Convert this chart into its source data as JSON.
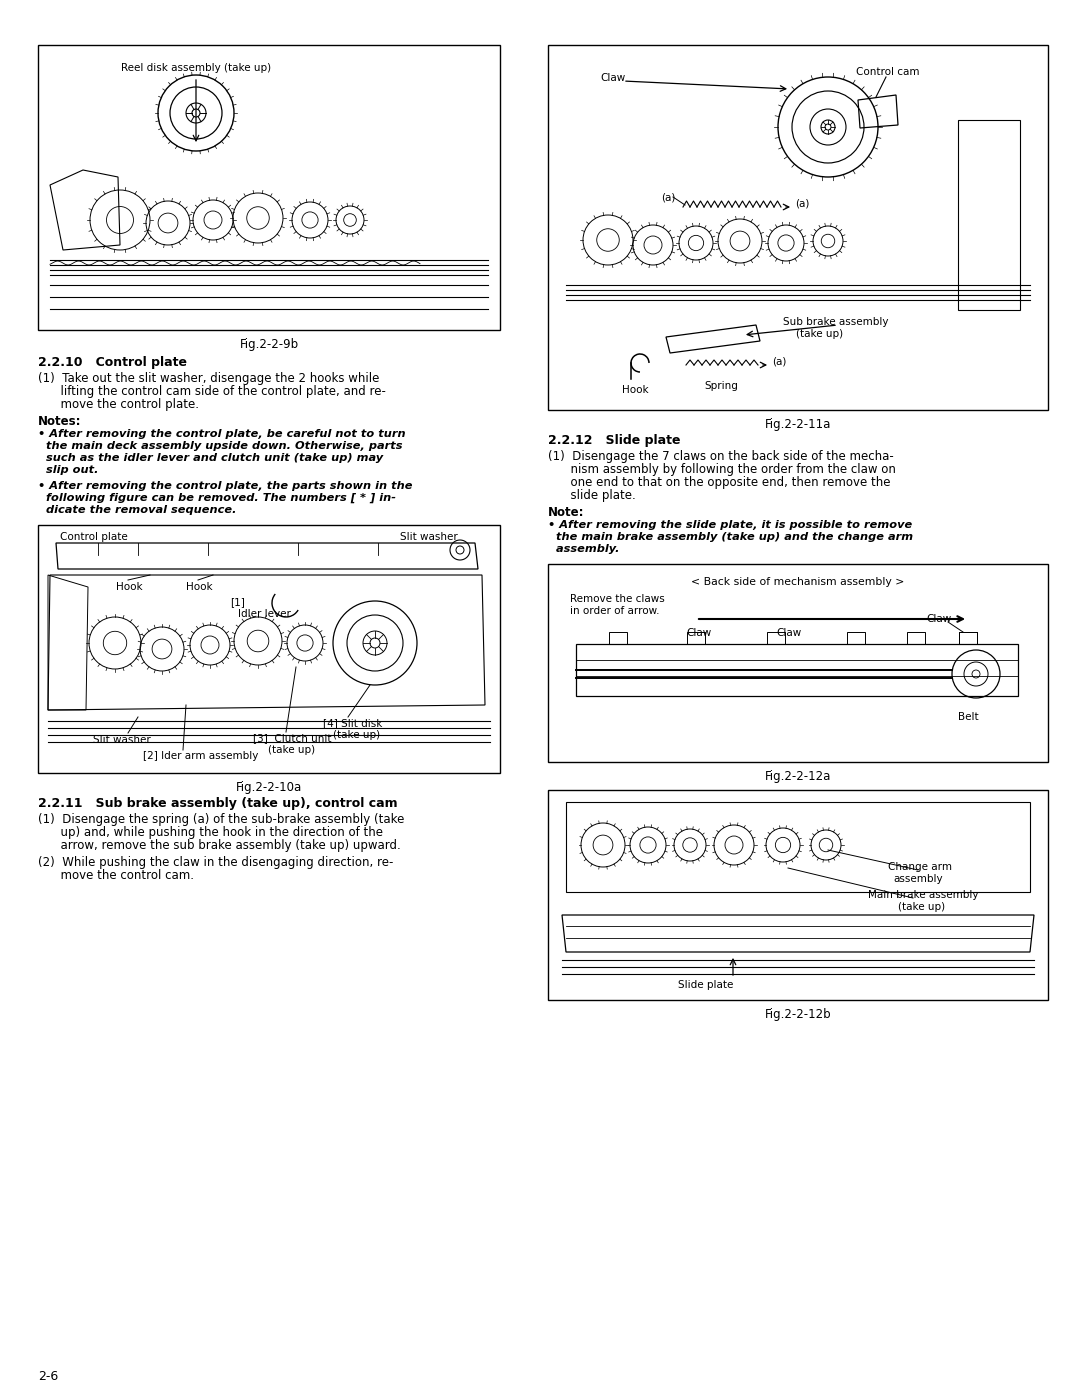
{
  "page_bg": "#ffffff",
  "page_width": 10.8,
  "page_height": 13.97,
  "dpi": 100,
  "page_number": "2-6",
  "col1": {
    "fig1_label": "Fig.2-2-9b",
    "fig1_title": "Reel disk assembly (take up)",
    "section1_title": "2.2.10   Control plate",
    "para1_lines": [
      "(1)  Take out the slit washer, disengage the 2 hooks while",
      "      lifting the control cam side of the control plate, and re-",
      "      move the control plate."
    ],
    "notes_title": "Notes:",
    "note1_lines": [
      "• After removing the control plate, be careful not to turn",
      "  the main deck assembly upside down. Otherwise, parts",
      "  such as the idler lever and clutch unit (take up) may",
      "  slip out."
    ],
    "note2_lines": [
      "• After removing the control plate, the parts shown in the",
      "  following figure can be removed. The numbers [ * ] in-",
      "  dicate the removal sequence."
    ],
    "fig2_label": "Fig.2-2-10a",
    "section2_title": "2.2.11   Sub brake assembly (take up), control cam",
    "para2_lines": [
      "(1)  Disengage the spring (a) of the sub-brake assembly (take",
      "      up) and, while pushing the hook in the direction of the",
      "      arrow, remove the sub brake assembly (take up) upward."
    ],
    "para3_lines": [
      "(2)  While pushing the claw in the disengaging direction, re-",
      "      move the control cam."
    ]
  },
  "col2": {
    "fig1_label": "Fig.2-2-11a",
    "section1_title": "2.2.12   Slide plate",
    "para1_lines": [
      "(1)  Disengage the 7 claws on the back side of the mecha-",
      "      nism assembly by following the order from the claw on",
      "      one end to that on the opposite end, then remove the",
      "      slide plate."
    ],
    "note_title": "Note:",
    "note1_lines": [
      "• After removing the slide plate, it is possible to remove",
      "  the main brake assembly (take up) and the change arm",
      "  assembly."
    ],
    "fig2_label": "Fig.2-2-12a",
    "fig2_caption_top": "< Back side of mechanism assembly >",
    "fig3_label": "Fig.2-2-12b"
  }
}
